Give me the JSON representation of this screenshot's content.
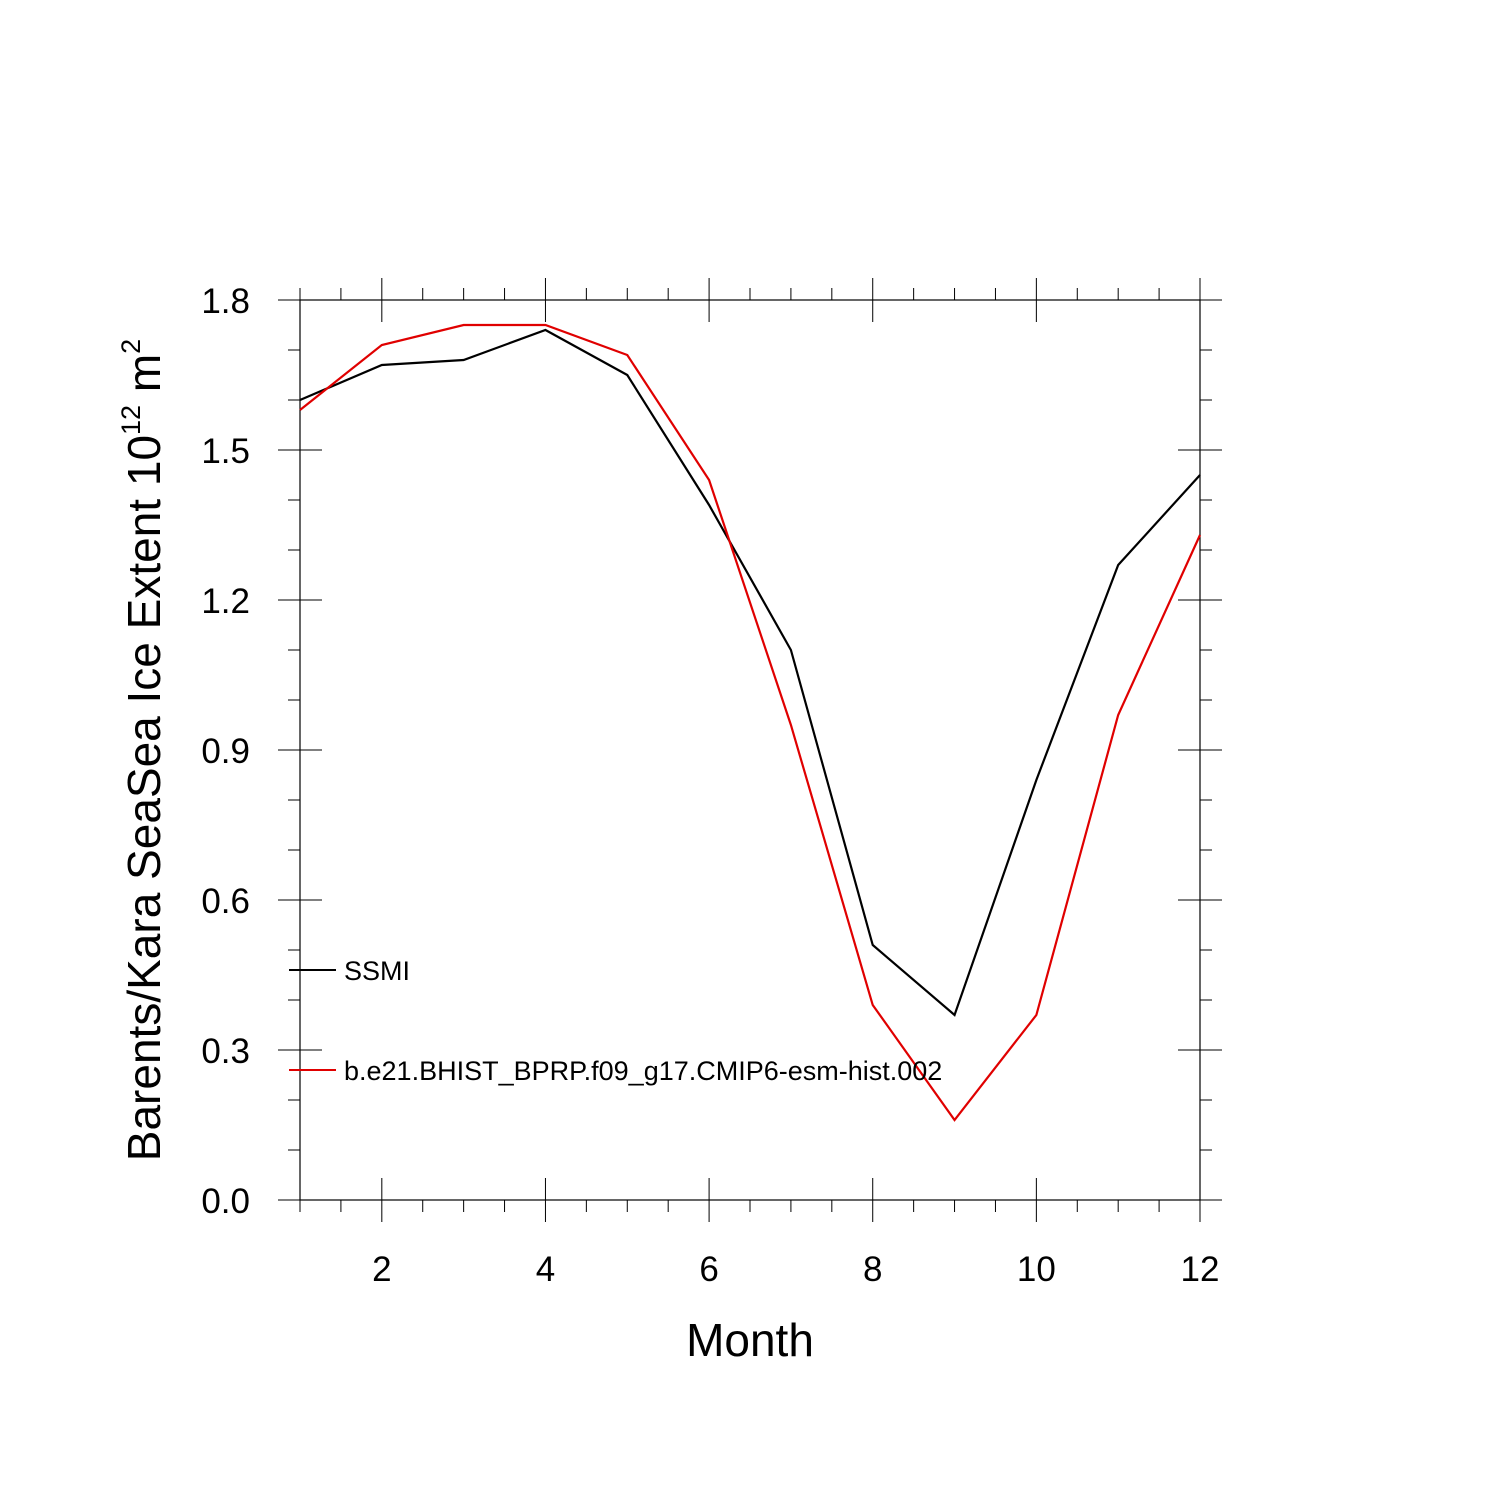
{
  "chart_data": {
    "type": "line",
    "xlabel": "Month",
    "ylabel": "Barents/Kara SeaSea Ice Extent 10",
    "ylabel_exp": "12",
    "ylabel_unit": " m",
    "ylabel_unit_exp": "2",
    "xlim": [
      1,
      12
    ],
    "ylim": [
      0,
      1.8
    ],
    "x_ticks": [
      2,
      4,
      6,
      8,
      10,
      12
    ],
    "x_tick_labels": [
      "2",
      "4",
      "6",
      "8",
      "10",
      "12"
    ],
    "y_ticks": [
      0,
      0.3,
      0.6,
      0.9,
      1.2,
      1.5,
      1.8
    ],
    "y_tick_labels": [
      "0.0",
      "0.3",
      "0.6",
      "0.9",
      "1.2",
      "1.5",
      "1.8"
    ],
    "x_minor_step": 0.5,
    "y_minor_step": 0.1,
    "grid": false,
    "legend_position": "lower-left",
    "x": [
      1,
      2,
      3,
      4,
      5,
      6,
      7,
      8,
      9,
      10,
      11,
      12
    ],
    "series": [
      {
        "name": "SSMI",
        "color": "#000000",
        "values": [
          1.6,
          1.67,
          1.68,
          1.74,
          1.65,
          1.39,
          1.1,
          0.51,
          0.37,
          0.84,
          1.27,
          1.45
        ]
      },
      {
        "name": "b.e21.BHIST_BPRP.f09_g17.CMIP6-esm-hist.002",
        "color": "#e00000",
        "values": [
          1.58,
          1.71,
          1.75,
          1.75,
          1.69,
          1.44,
          0.95,
          0.39,
          0.16,
          0.37,
          0.97,
          1.33
        ]
      }
    ]
  }
}
